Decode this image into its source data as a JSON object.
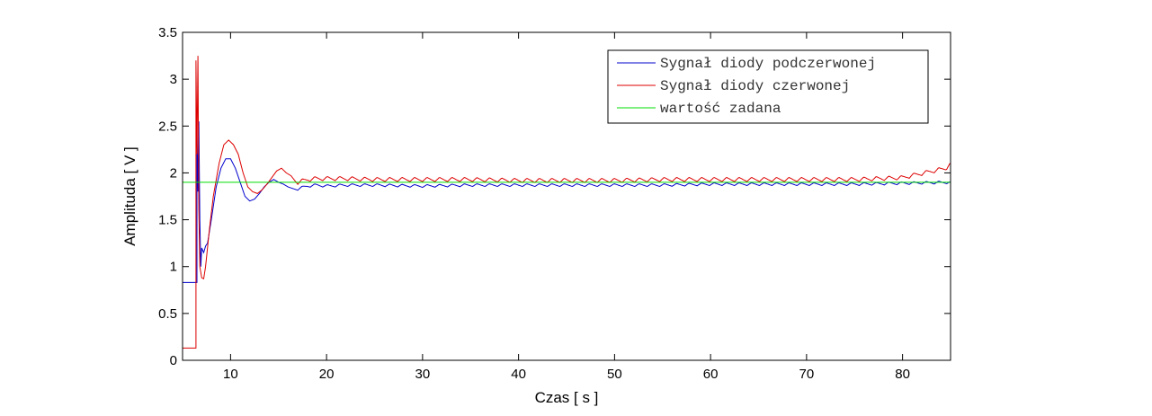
{
  "chart_data": {
    "type": "line",
    "xlabel": "Czas [ s ]",
    "ylabel": "Amplituda [ V ]",
    "xlim": [
      5,
      85
    ],
    "ylim": [
      0,
      3.5
    ],
    "xticks": [
      10,
      20,
      30,
      40,
      50,
      60,
      70,
      80
    ],
    "yticks": [
      0,
      0.5,
      1,
      1.5,
      2,
      2.5,
      3,
      3.5
    ],
    "ytick_labels": [
      "0",
      "0.5",
      "1",
      "1.5",
      "2",
      "2.5",
      "3",
      "3.5"
    ],
    "grid": false,
    "legend_position": "top-right",
    "series": [
      {
        "name": "Sygnał diody podczerwonej",
        "color": "#0000cc",
        "x": [
          5,
          6.5,
          6.5,
          6.6,
          6.7,
          6.8,
          6.9,
          7.0,
          7.2,
          7.4,
          7.6,
          8.0,
          8.5,
          9.0,
          9.5,
          10.0,
          10.5,
          11.0,
          11.5,
          12.0,
          12.5,
          13.0,
          13.5,
          14.0,
          14.5,
          15.0,
          15.5,
          16.0,
          17.0,
          18.0,
          19.0,
          20.0,
          22.0,
          25.0,
          30.0,
          35.0,
          40.0,
          45.0,
          50.0,
          55.0,
          60.0,
          65.0,
          70.0,
          75.0,
          80.0,
          85.0
        ],
        "values": [
          0.83,
          0.83,
          2.5,
          1.8,
          2.55,
          1.5,
          1.0,
          1.2,
          1.15,
          1.22,
          1.25,
          1.5,
          1.85,
          2.05,
          2.15,
          2.15,
          2.05,
          1.9,
          1.75,
          1.7,
          1.72,
          1.78,
          1.85,
          1.9,
          1.93,
          1.9,
          1.88,
          1.85,
          1.83,
          1.86,
          1.87,
          1.86,
          1.87,
          1.87,
          1.86,
          1.87,
          1.87,
          1.87,
          1.87,
          1.87,
          1.88,
          1.88,
          1.88,
          1.88,
          1.89,
          1.9
        ],
        "ripple_from_x": 17,
        "ripple_amplitude": 0.03,
        "ripple_period": 1.3
      },
      {
        "name": "Sygnał diody czerwonej",
        "color": "#dd0000",
        "x": [
          5,
          6.4,
          6.4,
          6.5,
          6.6,
          6.7,
          6.8,
          7.0,
          7.2,
          7.4,
          7.8,
          8.2,
          8.8,
          9.3,
          9.8,
          10.3,
          10.8,
          11.3,
          11.8,
          12.3,
          12.8,
          13.3,
          13.8,
          14.3,
          14.8,
          15.3,
          15.8,
          16.3,
          17.0,
          18.0,
          19.0,
          20.0,
          22.0,
          25.0,
          30.0,
          35.0,
          40.0,
          45.0,
          50.0,
          55.0,
          60.0,
          65.0,
          70.0,
          75.0,
          80.0,
          84.5,
          85.0
        ],
        "values": [
          0.13,
          0.13,
          3.2,
          2.2,
          3.25,
          1.6,
          1.0,
          0.88,
          0.87,
          1.0,
          1.4,
          1.75,
          2.1,
          2.3,
          2.35,
          2.3,
          2.2,
          2.0,
          1.85,
          1.8,
          1.78,
          1.82,
          1.88,
          1.95,
          2.02,
          2.05,
          2.0,
          1.97,
          1.9,
          1.93,
          1.94,
          1.94,
          1.94,
          1.93,
          1.93,
          1.93,
          1.92,
          1.92,
          1.92,
          1.93,
          1.93,
          1.93,
          1.93,
          1.93,
          1.95,
          2.05,
          2.1
        ],
        "ripple_from_x": 17,
        "ripple_amplitude": 0.045,
        "ripple_period": 1.3
      },
      {
        "name": "wartość zadana",
        "color": "#00dd00",
        "x": [
          5,
          85
        ],
        "values": [
          1.9,
          1.9
        ]
      }
    ]
  }
}
